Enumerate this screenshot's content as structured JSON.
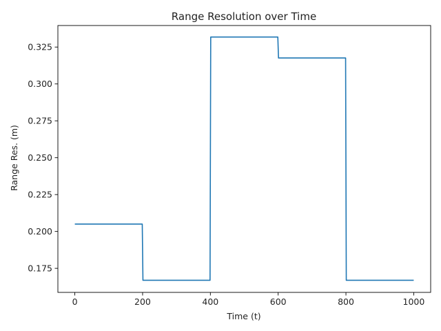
{
  "chart_data": {
    "type": "line",
    "title": "Range Resolution over Time",
    "xlabel": "Time (t)",
    "ylabel": "Range Res. (m)",
    "xlim": [
      -50,
      1050
    ],
    "ylim": [
      0.1587,
      0.3396
    ],
    "x_ticks": [
      0,
      200,
      400,
      600,
      800,
      1000
    ],
    "x_tick_labels": [
      "0",
      "200",
      "400",
      "600",
      "800",
      "1000"
    ],
    "y_ticks": [
      0.175,
      0.2,
      0.225,
      0.25,
      0.275,
      0.3,
      0.325
    ],
    "y_tick_labels": [
      "0.175",
      "0.200",
      "0.225",
      "0.250",
      "0.275",
      "0.300",
      "0.325"
    ],
    "grid": false,
    "line_color": "#1f77b4",
    "series": [
      {
        "x": [
          0,
          199,
          201,
          399,
          401,
          599,
          601,
          799,
          801,
          1000
        ],
        "y": [
          0.205,
          0.205,
          0.1669,
          0.1669,
          0.3318,
          0.3318,
          0.3176,
          0.3176,
          0.1669,
          0.1669
        ]
      }
    ]
  }
}
